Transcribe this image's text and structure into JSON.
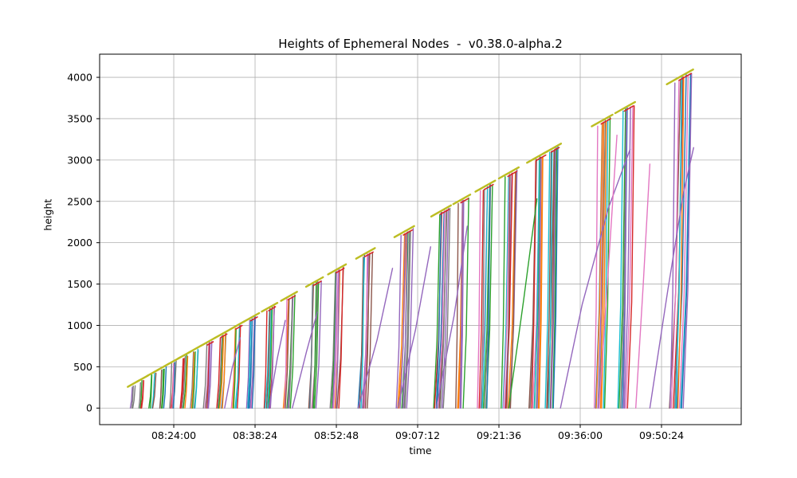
{
  "chart_data": {
    "type": "line",
    "title": "Heights of Ephemeral Nodes  -  v0.38.0-alpha.2",
    "xlabel": "time",
    "ylabel": "height",
    "grid": true,
    "legend": "none",
    "time_encoding": "seconds since 08:00:00",
    "xlim_seconds": [
      652,
      7471
    ],
    "ylim": [
      -200,
      4280
    ],
    "x_ticks": [
      {
        "label": "08:24:00",
        "t": 1440
      },
      {
        "label": "08:38:24",
        "t": 2304
      },
      {
        "label": "08:52:48",
        "t": 3168
      },
      {
        "label": "09:07:12",
        "t": 4032
      },
      {
        "label": "09:21:36",
        "t": 4896
      },
      {
        "label": "09:36:00",
        "t": 5760
      },
      {
        "label": "09:50:24",
        "t": 6624
      }
    ],
    "y_ticks": [
      0,
      500,
      1000,
      1500,
      2000,
      2500,
      3000,
      3500,
      4000
    ],
    "envelope": {
      "t0": 940,
      "h0": 250,
      "rate": 0.6387,
      "start_label": "08:15:40 @ 250",
      "end_label": "09:55:00 @ 4050",
      "color": "#bcbd22"
    },
    "palette": [
      "#1f77b4",
      "#ff7f0e",
      "#2ca02c",
      "#d62728",
      "#9467bd",
      "#8c564b",
      "#e377c2",
      "#7f7f7f",
      "#bcbd22",
      "#17becf"
    ],
    "grid_color": "#b0b0b0",
    "spine_color": "#000000",
    "seed": 42,
    "clusters": [
      {
        "t": 971,
        "dur": 60,
        "n": 3
      },
      {
        "t": 1065,
        "dur": 60,
        "n": 4
      },
      {
        "t": 1175,
        "dur": 70,
        "n": 4
      },
      {
        "t": 1284,
        "dur": 70,
        "n": 5
      },
      {
        "t": 1394,
        "dur": 70,
        "n": 5
      },
      {
        "t": 1504,
        "dur": 75,
        "n": 5
      },
      {
        "t": 1613,
        "dur": 80,
        "n": 5
      },
      {
        "t": 1754,
        "dur": 85,
        "n": 6
      },
      {
        "t": 1895,
        "dur": 90,
        "n": 6
      },
      {
        "t": 2052,
        "dur": 95,
        "n": 6
      },
      {
        "t": 2208,
        "dur": 100,
        "n": 7
      },
      {
        "t": 2396,
        "dur": 105,
        "n": 7
      },
      {
        "t": 2600,
        "dur": 110,
        "n": 7
      },
      {
        "t": 2866,
        "dur": 120,
        "n": 8
      },
      {
        "t": 3100,
        "dur": 130,
        "n": 8
      },
      {
        "t": 3398,
        "dur": 140,
        "n": 8
      },
      {
        "t": 3805,
        "dur": 150,
        "n": 9
      },
      {
        "t": 4196,
        "dur": 150,
        "n": 9
      },
      {
        "t": 4431,
        "dur": 120,
        "n": 6
      },
      {
        "t": 4666,
        "dur": 150,
        "n": 9
      },
      {
        "t": 4916,
        "dur": 150,
        "n": 9
      },
      {
        "t": 5214,
        "dur": 160,
        "n": 10
      },
      {
        "t": 5386,
        "dur": 130,
        "n": 8
      },
      {
        "t": 5903,
        "dur": 160,
        "n": 9
      },
      {
        "t": 6153,
        "dur": 150,
        "n": 8
      },
      {
        "t": 6700,
        "dur": 220,
        "n": 12
      }
    ],
    "laggards": [
      {
        "color": "#9467bd",
        "points": [
          [
            1980,
            0
          ],
          [
            2060,
            480
          ],
          [
            2145,
            850
          ]
        ]
      },
      {
        "color": "#9467bd",
        "points": [
          [
            2450,
            0
          ],
          [
            2540,
            600
          ],
          [
            2625,
            1060
          ]
        ]
      },
      {
        "color": "#9467bd",
        "points": [
          [
            2700,
            0
          ],
          [
            2850,
            680
          ],
          [
            2965,
            1160
          ]
        ]
      },
      {
        "color": "#9467bd",
        "points": [
          [
            3400,
            0
          ],
          [
            3600,
            820
          ],
          [
            3765,
            1690
          ]
        ]
      },
      {
        "color": "#9467bd",
        "points": [
          [
            3820,
            0
          ],
          [
            4010,
            950
          ],
          [
            4170,
            1950
          ]
        ]
      },
      {
        "color": "#9467bd",
        "points": [
          [
            4230,
            0
          ],
          [
            4420,
            1120
          ],
          [
            4560,
            2200
          ]
        ]
      },
      {
        "color": "#2ca02c",
        "points": [
          [
            5000,
            0
          ],
          [
            5160,
            1320
          ],
          [
            5300,
            2530
          ]
        ]
      },
      {
        "color": "#9467bd",
        "points": [
          [
            5550,
            0
          ],
          [
            5780,
            1250
          ],
          [
            6060,
            2420
          ],
          [
            6290,
            3130
          ]
        ]
      },
      {
        "color": "#e377c2",
        "points": [
          [
            5960,
            0
          ],
          [
            6060,
            1700
          ],
          [
            6150,
            3300
          ]
        ]
      },
      {
        "color": "#e377c2",
        "points": [
          [
            6350,
            0
          ],
          [
            6430,
            1500
          ],
          [
            6500,
            2950
          ]
        ]
      },
      {
        "color": "#9467bd",
        "points": [
          [
            6500,
            0
          ],
          [
            6690,
            1420
          ],
          [
            6860,
            2620
          ],
          [
            6965,
            3150
          ]
        ]
      }
    ]
  }
}
